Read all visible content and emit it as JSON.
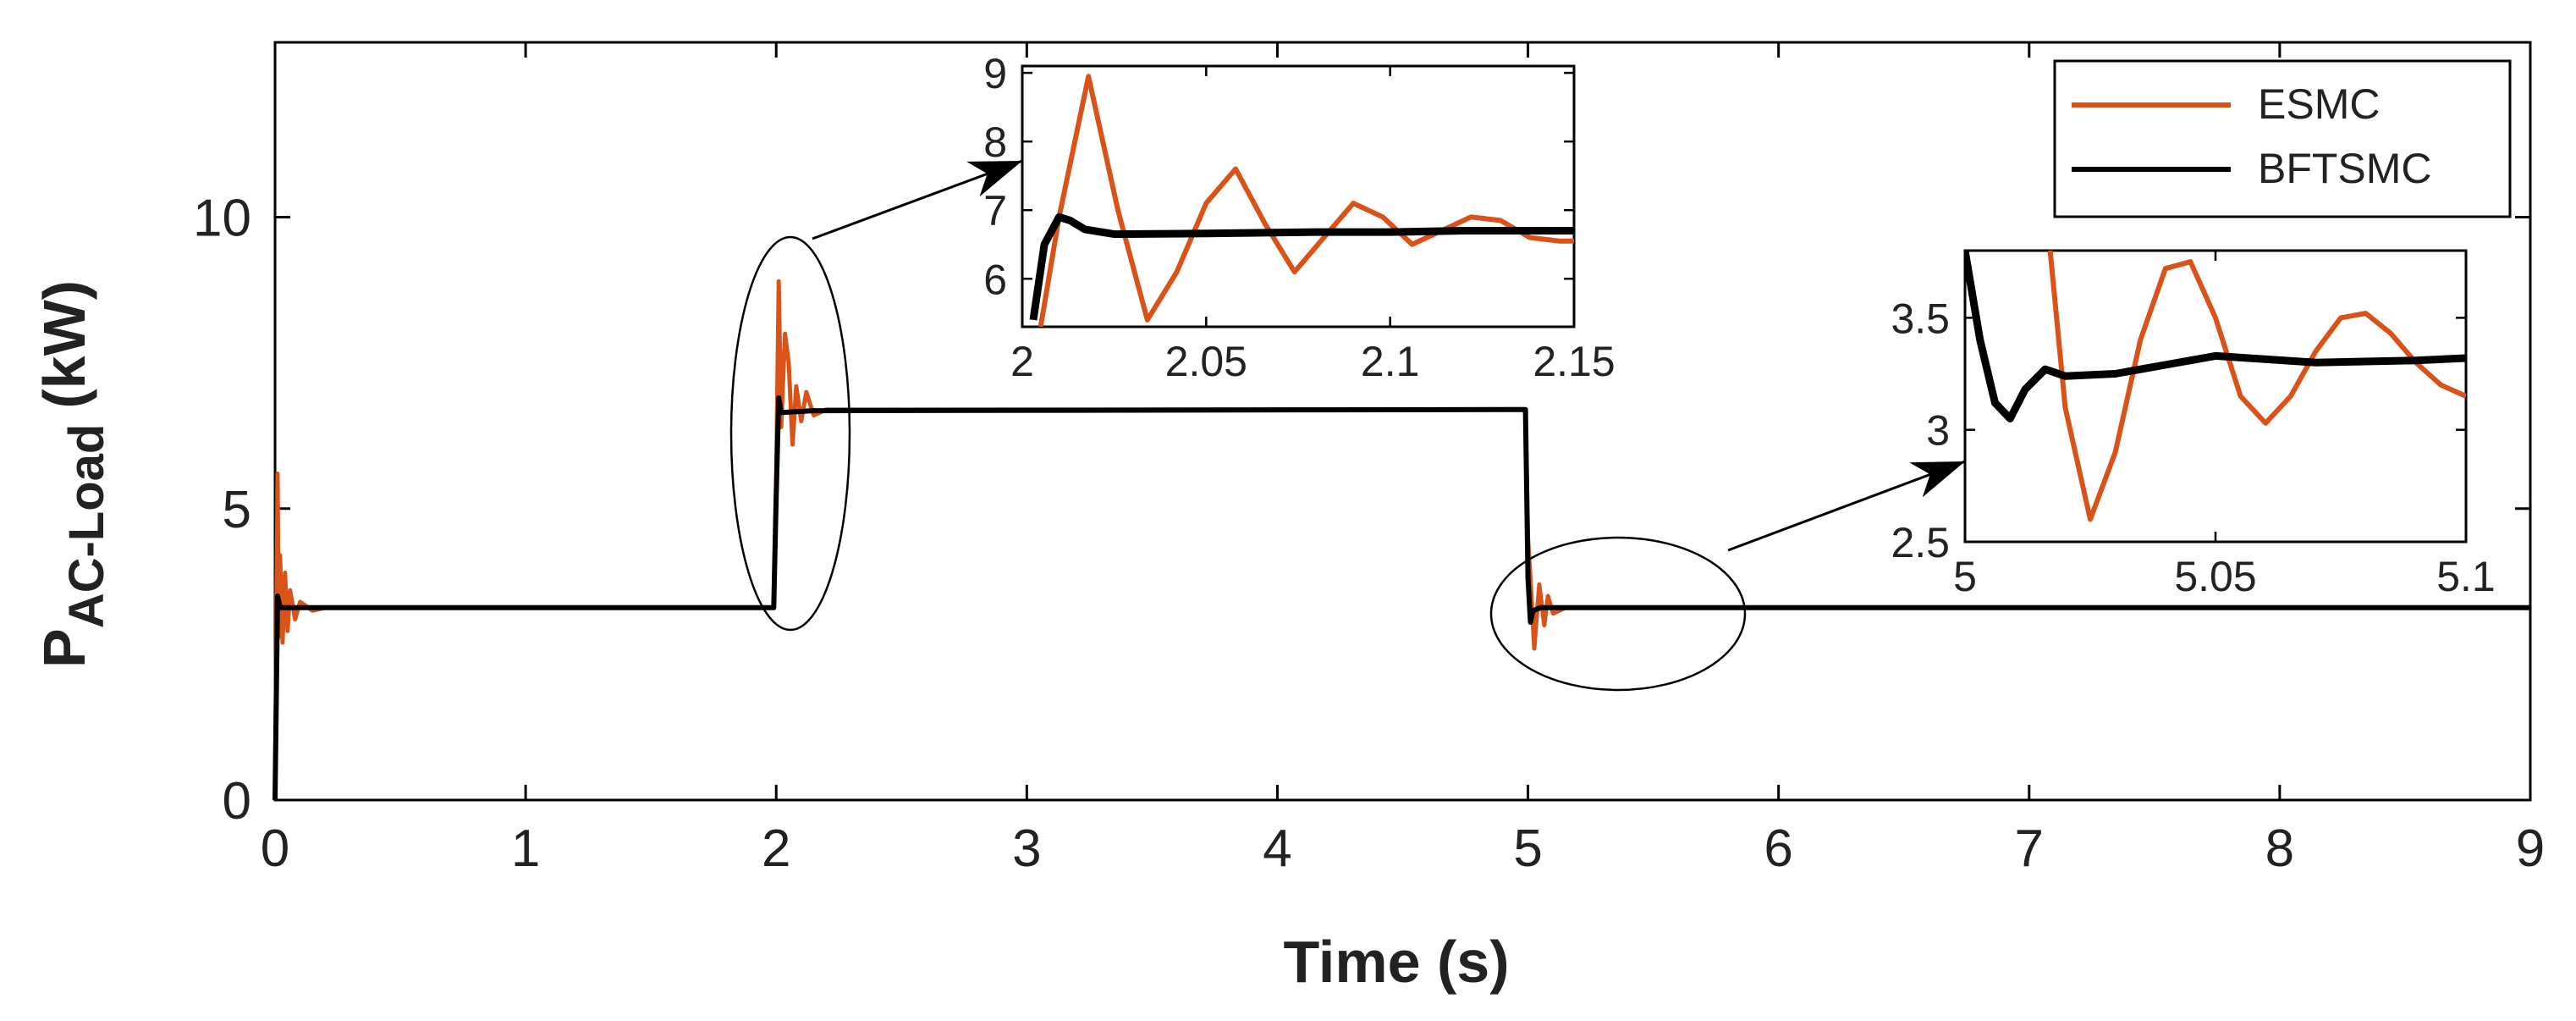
{
  "chart_data": {
    "type": "line",
    "xlabel": "Time (s)",
    "ylabel": {
      "main": "P",
      "subscript": "AC-Load",
      "unit": "(kW)"
    },
    "xlim": [
      0,
      9
    ],
    "ylim": [
      0,
      13
    ],
    "xticks": [
      "0",
      "1",
      "2",
      "3",
      "4",
      "5",
      "6",
      "7",
      "8",
      "9"
    ],
    "yticks": [
      "0",
      "5",
      "10"
    ],
    "legend": {
      "position": "top-right",
      "entries": [
        "ESMC",
        "BFTSMC"
      ]
    },
    "colors": {
      "ESMC": "#d95319",
      "BFTSMC": "#000000"
    },
    "series": [
      {
        "name": "ESMC",
        "x": [
          0,
          0.01,
          0.015,
          0.02,
          0.03,
          0.04,
          0.05,
          0.06,
          0.08,
          0.1,
          0.15,
          0.2,
          1.99,
          2.0,
          2.01,
          2.02,
          2.035,
          2.05,
          2.065,
          2.08,
          2.1,
          2.12,
          2.15,
          2.2,
          4.99,
          5.0,
          5.01,
          5.025,
          5.045,
          5.065,
          5.08,
          5.1,
          5.15,
          9.0
        ],
        "values": [
          0,
          5.6,
          2.8,
          4.2,
          2.7,
          3.9,
          2.9,
          3.6,
          3.1,
          3.4,
          3.25,
          3.3,
          3.3,
          5.5,
          8.9,
          6.4,
          8.0,
          7.5,
          6.1,
          7.1,
          6.5,
          7.0,
          6.6,
          6.7,
          6.7,
          4.5,
          3.8,
          2.6,
          3.7,
          3.0,
          3.5,
          3.2,
          3.3,
          3.3
        ]
      },
      {
        "name": "BFTSMC",
        "x": [
          0,
          0.01,
          0.02,
          0.05,
          1.99,
          2.0,
          2.01,
          2.02,
          2.15,
          4.99,
          5.0,
          5.01,
          5.02,
          5.05,
          9.0
        ],
        "values": [
          0,
          3.5,
          3.3,
          3.3,
          3.3,
          5.2,
          6.9,
          6.65,
          6.68,
          6.7,
          3.8,
          3.05,
          3.25,
          3.3,
          3.3
        ]
      }
    ],
    "insets": [
      {
        "xlim": [
          2,
          2.15
        ],
        "ylim": [
          5.3,
          9.1
        ],
        "xticks": [
          "2",
          "2.05",
          "2.1",
          "2.15"
        ],
        "yticks": [
          "6",
          "7",
          "8",
          "9"
        ],
        "series": [
          {
            "name": "ESMC",
            "x": [
              2.005,
              2.01,
              2.018,
              2.026,
              2.034,
              2.042,
              2.05,
              2.058,
              2.066,
              2.074,
              2.082,
              2.09,
              2.098,
              2.106,
              2.114,
              2.122,
              2.13,
              2.138,
              2.146,
              2.15
            ],
            "values": [
              5.3,
              6.9,
              8.95,
              7.0,
              5.4,
              6.1,
              7.1,
              7.6,
              6.8,
              6.1,
              6.6,
              7.1,
              6.9,
              6.5,
              6.7,
              6.9,
              6.85,
              6.6,
              6.55,
              6.55
            ]
          },
          {
            "name": "BFTSMC",
            "x": [
              2.003,
              2.006,
              2.01,
              2.013,
              2.017,
              2.025,
              2.05,
              2.08,
              2.1,
              2.12,
              2.15
            ],
            "values": [
              5.4,
              6.5,
              6.9,
              6.85,
              6.72,
              6.65,
              6.66,
              6.68,
              6.68,
              6.7,
              6.7
            ]
          }
        ]
      },
      {
        "xlim": [
          5,
          5.1
        ],
        "ylim": [
          2.5,
          3.8
        ],
        "xticks": [
          "5",
          "5.05",
          "5.1"
        ],
        "yticks": [
          "2.5",
          "3",
          "3.5"
        ],
        "series": [
          {
            "name": "ESMC",
            "x": [
              5.017,
              5.02,
              5.025,
              5.03,
              5.035,
              5.04,
              5.045,
              5.05,
              5.055,
              5.06,
              5.065,
              5.07,
              5.075,
              5.08,
              5.085,
              5.09,
              5.095,
              5.1
            ],
            "values": [
              3.8,
              3.1,
              2.6,
              2.9,
              3.4,
              3.72,
              3.75,
              3.5,
              3.15,
              3.03,
              3.15,
              3.35,
              3.5,
              3.52,
              3.43,
              3.3,
              3.2,
              3.15
            ]
          },
          {
            "name": "BFTSMC",
            "x": [
              5.0,
              5.003,
              5.006,
              5.009,
              5.012,
              5.016,
              5.02,
              5.03,
              5.05,
              5.07,
              5.09,
              5.1
            ],
            "values": [
              3.8,
              3.4,
              3.12,
              3.05,
              3.18,
              3.27,
              3.24,
              3.25,
              3.33,
              3.3,
              3.31,
              3.32
            ]
          }
        ]
      }
    ]
  }
}
